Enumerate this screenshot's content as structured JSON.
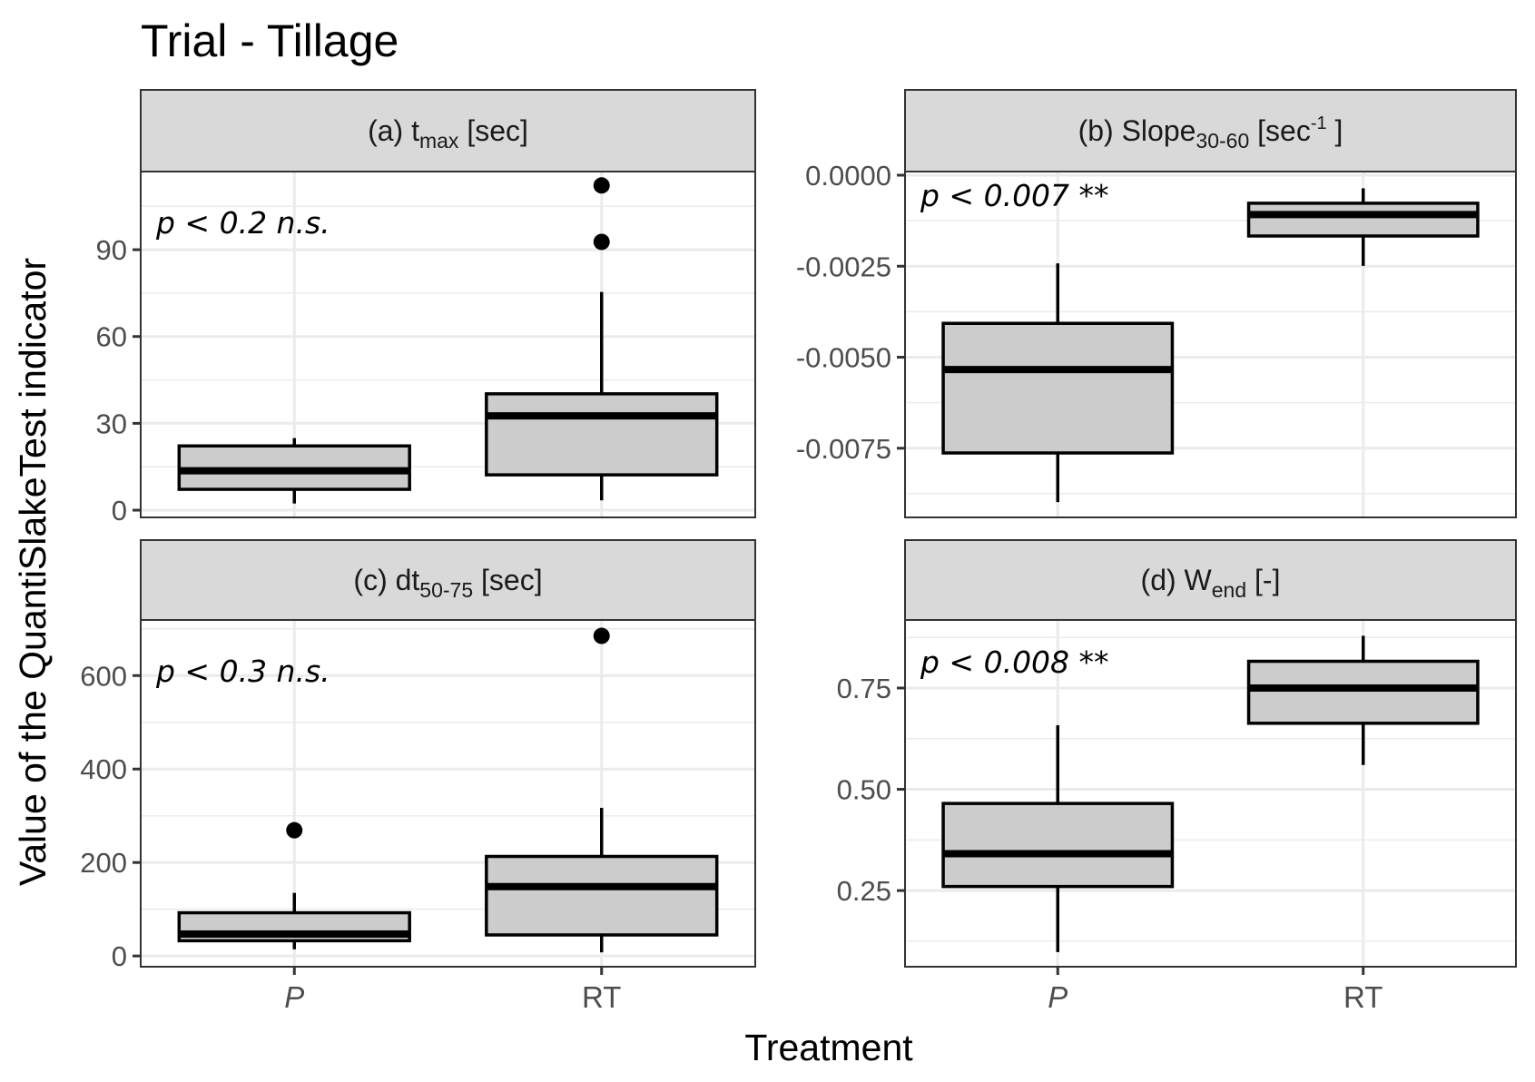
{
  "chart_data": {
    "type": "boxplot",
    "title": "Trial - Tillage",
    "xlabel": "Treatment",
    "ylabel": "Value of the QuantiSlakeTest indicator",
    "categories": [
      "P",
      "RT"
    ],
    "category_styles": {
      "P": "italic",
      "RT": "normal"
    },
    "grid": true,
    "layout": "2x2 facets",
    "colors": {
      "box_fill": "#cccccc",
      "box_stroke": "#000000",
      "strip_fill": "#d9d9d9",
      "grid": "#ebebeb",
      "frame": "#333333"
    },
    "panels": [
      {
        "id": "a",
        "strip": {
          "prefix": "(a) t",
          "sub": "max",
          "suffix": " [sec]"
        },
        "annotation": "p < 0.2 n.s.",
        "ylim": [
          -2.5,
          117
        ],
        "yticks": [
          0,
          30,
          60,
          90
        ],
        "ytick_labels": [
          "0",
          "30",
          "60",
          "90"
        ],
        "boxes": [
          {
            "category": "P",
            "whisker_low": 2.3,
            "q1": 7.2,
            "median": 13.6,
            "q3": 22.2,
            "whisker_high": 24.9,
            "outliers": []
          },
          {
            "category": "RT",
            "whisker_low": 3.4,
            "q1": 12.2,
            "median": 32.6,
            "q3": 40.2,
            "whisker_high": 75.4,
            "outliers": [
              92.7,
              112.2
            ]
          }
        ]
      },
      {
        "id": "b",
        "strip": {
          "prefix": "(b) Slope",
          "sub": "30-60",
          "suffix": " [sec",
          "sup": "-1",
          "suffix2": " ]"
        },
        "annotation": "p < 0.007 **",
        "ylim": [
          -0.0094,
          0.0001
        ],
        "yticks": [
          0,
          -0.0025,
          -0.005,
          -0.0075
        ],
        "ytick_labels": [
          "0.0000",
          "-0.0025",
          "-0.0050",
          "-0.0075"
        ],
        "boxes": [
          {
            "category": "P",
            "whisker_low": -0.00898,
            "q1": -0.00763,
            "median": -0.00534,
            "q3": -0.00407,
            "whisker_high": -0.00242,
            "outliers": []
          },
          {
            "category": "RT",
            "whisker_low": -0.00249,
            "q1": -0.00167,
            "median": -0.00108,
            "q3": -0.00077,
            "whisker_high": -0.00036,
            "outliers": []
          }
        ]
      },
      {
        "id": "c",
        "strip": {
          "prefix": "(c) dt",
          "sub": "50-75",
          "suffix": " [sec]"
        },
        "annotation": "p < 0.3 n.s.",
        "ylim": [
          -23,
          719
        ],
        "yticks": [
          0,
          200,
          400,
          600
        ],
        "ytick_labels": [
          "0",
          "200",
          "400",
          "600"
        ],
        "boxes": [
          {
            "category": "P",
            "whisker_low": 14.3,
            "q1": 32.6,
            "median": 47,
            "q3": 92.5,
            "whisker_high": 135,
            "outliers": [
              269
            ]
          },
          {
            "category": "RT",
            "whisker_low": 7.8,
            "q1": 45,
            "median": 148.5,
            "q3": 213,
            "whisker_high": 317,
            "outliers": [
              685
            ]
          }
        ]
      },
      {
        "id": "d",
        "strip": {
          "prefix": "(d) W",
          "sub": "end",
          "suffix": " [-]"
        },
        "annotation": "p < 0.008 **",
        "ylim": [
          0.062,
          0.918
        ],
        "yticks": [
          0.25,
          0.5,
          0.75
        ],
        "ytick_labels": [
          "0.25",
          "0.50",
          "0.75"
        ],
        "boxes": [
          {
            "category": "P",
            "whisker_low": 0.098,
            "q1": 0.26,
            "median": 0.341,
            "q3": 0.465,
            "whisker_high": 0.658,
            "outliers": []
          },
          {
            "category": "RT",
            "whisker_low": 0.56,
            "q1": 0.663,
            "median": 0.75,
            "q3": 0.816,
            "whisker_high": 0.879,
            "outliers": []
          }
        ]
      }
    ]
  }
}
